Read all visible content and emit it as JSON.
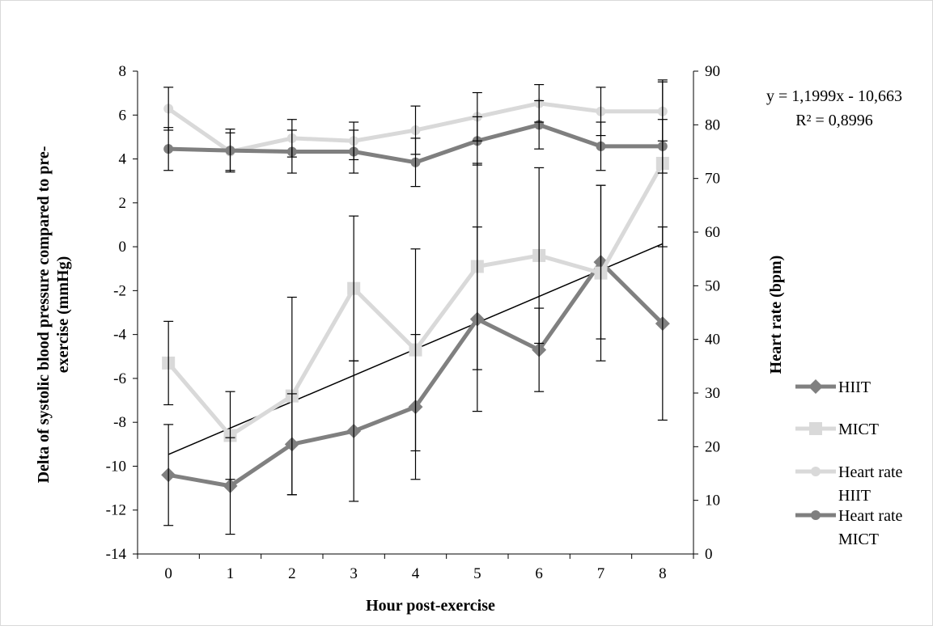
{
  "chart_data": {
    "type": "line",
    "x": [
      0,
      1,
      2,
      3,
      4,
      5,
      6,
      7,
      8
    ],
    "xlabel": "Hour post-exercise",
    "ylabel_left": "Delta of systolic blood pressure compared to pre-exercise (mmHg)",
    "ylabel_left_lines": [
      "Delta of systolic blood pressure compared to pre-",
      "exercise (mmHg)"
    ],
    "ylabel_right": "Heart rate (bpm)",
    "ylim_left": [
      -14,
      8
    ],
    "ylim_right": [
      0,
      90
    ],
    "yticks_left": [
      8,
      6,
      4,
      2,
      0,
      -2,
      -4,
      -6,
      -8,
      -10,
      -12,
      -14
    ],
    "yticks_right": [
      90,
      80,
      70,
      60,
      50,
      40,
      30,
      20,
      10,
      0
    ],
    "grid": false,
    "legend_position": "right",
    "series": [
      {
        "name": "HIIT",
        "legend_lines": [
          "HIIT"
        ],
        "axis": "left",
        "marker": "diamond",
        "color": "#808080",
        "values": [
          -10.4,
          -10.9,
          -9.0,
          -8.4,
          -7.3,
          -3.3,
          -4.7,
          -0.7,
          -3.5
        ],
        "error": [
          2.3,
          2.2,
          2.3,
          3.2,
          3.3,
          4.2,
          1.9,
          3.5,
          4.4
        ]
      },
      {
        "name": "MICT",
        "legend_lines": [
          "MICT"
        ],
        "axis": "left",
        "marker": "square",
        "color": "#d9d9d9",
        "values": [
          -5.3,
          -8.6,
          -6.8,
          -1.9,
          -4.7,
          -0.9,
          -0.4,
          -1.2,
          3.8
        ],
        "error": [
          1.9,
          2.0,
          4.5,
          3.3,
          4.6,
          4.7,
          4.0,
          4.0,
          3.8
        ]
      },
      {
        "name": "Heart rate HIIT",
        "legend_lines": [
          "Heart rate",
          "HIIT"
        ],
        "axis": "right",
        "marker": "circle",
        "color": "#d9d9d9",
        "values": [
          83,
          75,
          77.5,
          77,
          79,
          81.5,
          84,
          82.5,
          82.5
        ],
        "error": [
          4,
          3.5,
          3.5,
          3.5,
          4.5,
          4.5,
          3.5,
          4.5,
          5.5
        ]
      },
      {
        "name": "Heart rate MICT",
        "legend_lines": [
          "Heart rate",
          "MICT"
        ],
        "axis": "right",
        "marker": "circle",
        "color": "#7f7f7f",
        "values": [
          75.5,
          75.2,
          75,
          75,
          73,
          77,
          80,
          76,
          76
        ],
        "error": [
          4,
          4,
          4,
          4,
          4.5,
          4.5,
          4.5,
          4.5,
          5
        ]
      }
    ],
    "trendline": {
      "series": "HIIT",
      "slope": 1.1999,
      "intercept": -10.663,
      "equation": "y = 1,1999x - 10,663",
      "r_squared": "R² = 0,8996"
    }
  }
}
